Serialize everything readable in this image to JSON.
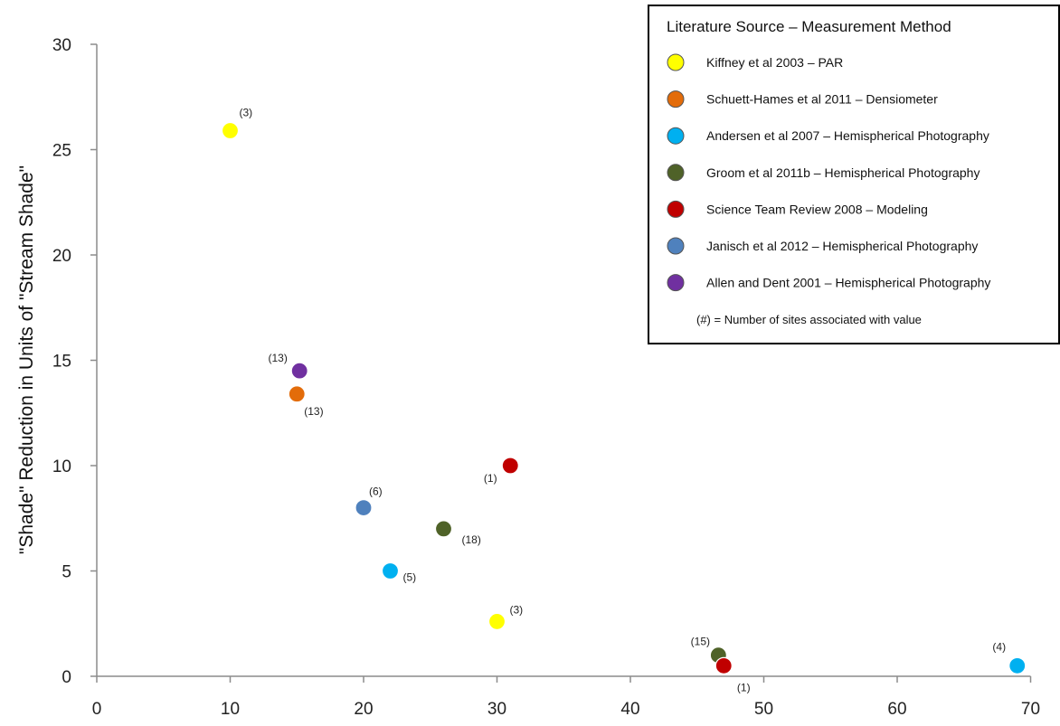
{
  "chart_data": {
    "type": "scatter",
    "title": "",
    "xlabel": "",
    "ylabel": "\"Shade\" Reduction in Units of \"Stream Shade\"",
    "xlim": [
      0,
      70
    ],
    "ylim": [
      0,
      30
    ],
    "x_ticks": [
      0,
      10,
      20,
      30,
      40,
      50,
      60,
      70
    ],
    "y_ticks": [
      0,
      5,
      10,
      15,
      20,
      25,
      30
    ],
    "grid": false,
    "legend_title": "Literature Source – Measurement Method",
    "legend_note": "(#) = Number of sites associated with value",
    "legend_position": "top-right",
    "series": [
      {
        "name": "Kiffney et al 2003 – PAR",
        "color": "#ffff00",
        "points": [
          {
            "x": 10,
            "y": 25.9,
            "label": "(3)"
          },
          {
            "x": 30,
            "y": 2.6,
            "label": "(3)"
          }
        ]
      },
      {
        "name": "Schuett-Hames et al 2011 – Densiometer",
        "color": "#e36c0a",
        "points": [
          {
            "x": 15,
            "y": 13.4,
            "label": "(13)"
          }
        ]
      },
      {
        "name": "Andersen et al 2007 – Hemispherical Photography",
        "color": "#00b0f0",
        "points": [
          {
            "x": 22,
            "y": 5,
            "label": "(5)"
          },
          {
            "x": 69,
            "y": 0.5,
            "label": "(4)"
          }
        ]
      },
      {
        "name": "Groom et al 2011b – Hemispherical Photography",
        "color": "#4f6228",
        "points": [
          {
            "x": 26,
            "y": 7,
            "label": "(18)"
          },
          {
            "x": 46.6,
            "y": 1,
            "label": "(15)"
          }
        ]
      },
      {
        "name": "Science Team Review 2008 – Modeling",
        "color": "#c00000",
        "points": [
          {
            "x": 31,
            "y": 10,
            "label": "(1)"
          },
          {
            "x": 47,
            "y": 0.5,
            "label": "(1)"
          }
        ]
      },
      {
        "name": "Janisch et al 2012 – Hemispherical Photography",
        "color": "#4f81bd",
        "points": [
          {
            "x": 20,
            "y": 8,
            "label": "(6)"
          }
        ]
      },
      {
        "name": "Allen and Dent 2001 – Hemispherical Photography",
        "color": "#7030a0",
        "points": [
          {
            "x": 15.2,
            "y": 14.5,
            "label": "(13)"
          }
        ]
      }
    ]
  }
}
